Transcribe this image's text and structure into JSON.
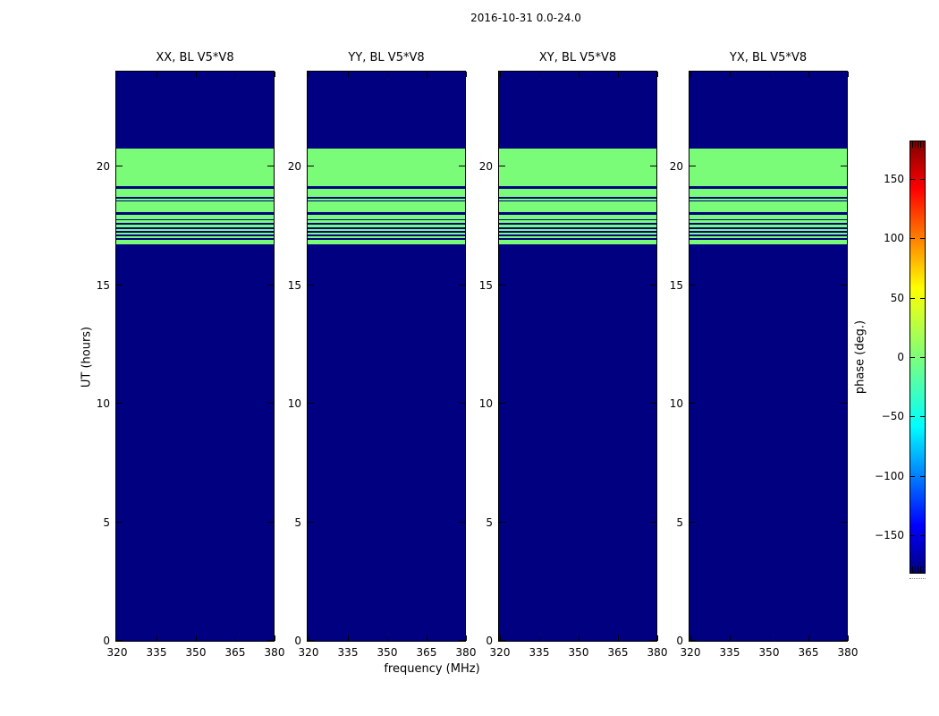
{
  "figure": {
    "title": "2016-10-31 0.0-24.0",
    "xlabel": "frequency (MHz)",
    "ylabel": "UT (hours)",
    "colorbar_label": "phase (deg.)"
  },
  "panels": [
    {
      "title": "XX, BL V5*V8"
    },
    {
      "title": "YY, BL V5*V8"
    },
    {
      "title": "XY, BL V5*V8"
    },
    {
      "title": "YX, BL V5*V8"
    }
  ],
  "chart_data": {
    "type": "heatmap",
    "title": "2016-10-31 0.0-24.0",
    "panel_titles": [
      "XX, BL V5*V8",
      "YY, BL V5*V8",
      "XY, BL V5*V8",
      "YX, BL V5*V8"
    ],
    "xlabel": "frequency (MHz)",
    "ylabel": "UT (hours)",
    "x_range_mhz": [
      319.3,
      380.9
    ],
    "x_ticks": [
      320,
      335,
      350,
      365,
      380
    ],
    "y_range_hours": [
      0,
      24
    ],
    "y_ticks": [
      0,
      5,
      10,
      15,
      20
    ],
    "colorbar": {
      "label": "phase (deg.)",
      "colormap": "jet",
      "range_deg": [
        -180,
        180
      ],
      "ticks": [
        150,
        100,
        50,
        0,
        -50,
        -100,
        -150
      ],
      "tick_labels": [
        "150",
        "100",
        "50",
        "0",
        "−50",
        "−100",
        "−150"
      ]
    },
    "value_colors": {
      "0": "#7bfc78",
      "-180": "#000080"
    },
    "note": "All four polarization panels are identical; phase is uniform across frequency at each time. Segments listed bottom-to-top in UT hours.",
    "ut_segments": [
      {
        "from": 0.0,
        "to": 16.72,
        "phase": -180
      },
      {
        "from": 16.72,
        "to": 16.89,
        "phase": 0
      },
      {
        "from": 16.89,
        "to": 16.97,
        "phase": -180
      },
      {
        "from": 16.97,
        "to": 17.05,
        "phase": 0
      },
      {
        "from": 17.05,
        "to": 17.13,
        "phase": -180
      },
      {
        "from": 17.13,
        "to": 17.22,
        "phase": 0
      },
      {
        "from": 17.22,
        "to": 17.29,
        "phase": -180
      },
      {
        "from": 17.29,
        "to": 17.37,
        "phase": 0
      },
      {
        "from": 17.37,
        "to": 17.44,
        "phase": -180
      },
      {
        "from": 17.44,
        "to": 17.53,
        "phase": 0
      },
      {
        "from": 17.53,
        "to": 17.61,
        "phase": -180
      },
      {
        "from": 17.61,
        "to": 17.72,
        "phase": 0
      },
      {
        "from": 17.72,
        "to": 17.79,
        "phase": -180
      },
      {
        "from": 17.79,
        "to": 17.97,
        "phase": 0
      },
      {
        "from": 17.97,
        "to": 18.06,
        "phase": -180
      },
      {
        "from": 18.06,
        "to": 18.51,
        "phase": 0
      },
      {
        "from": 18.51,
        "to": 18.58,
        "phase": -180
      },
      {
        "from": 18.58,
        "to": 18.66,
        "phase": 0
      },
      {
        "from": 18.66,
        "to": 18.73,
        "phase": -180
      },
      {
        "from": 18.73,
        "to": 19.07,
        "phase": 0
      },
      {
        "from": 19.07,
        "to": 19.17,
        "phase": -180
      },
      {
        "from": 19.17,
        "to": 20.77,
        "phase": 0
      },
      {
        "from": 20.77,
        "to": 24.0,
        "phase": -180
      }
    ]
  }
}
